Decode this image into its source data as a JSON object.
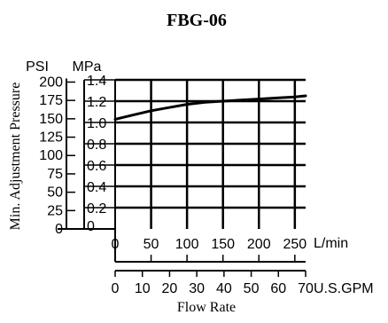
{
  "chart_data": {
    "type": "line",
    "title": "FBG-06",
    "ylabel": "Min. Adjustment Pressure",
    "xlabel": "Flow Rate",
    "y_axes": [
      {
        "unit": "PSI",
        "ticks": [
          "0",
          "25",
          "50",
          "75",
          "100",
          "125",
          "150",
          "175",
          "200"
        ],
        "range": [
          0,
          203
        ]
      },
      {
        "unit": "MPa",
        "ticks": [
          "0",
          "0.2",
          "0.4",
          "0.6",
          "0.8",
          "1.0",
          "1.2",
          "1.4"
        ],
        "range": [
          0,
          1.4
        ]
      }
    ],
    "x_axes": [
      {
        "unit": "L/min",
        "ticks": [
          "0",
          "50",
          "100",
          "150",
          "200",
          "250"
        ],
        "range": [
          0,
          265
        ]
      },
      {
        "unit": "U.S.GPM",
        "ticks": [
          "0",
          "10",
          "20",
          "30",
          "40",
          "50",
          "60",
          "70"
        ],
        "range": [
          0,
          70
        ]
      }
    ],
    "grid": true,
    "series": [
      {
        "x_unit": "L/min",
        "y_unit": "MPa",
        "x": [
          0,
          25,
          50,
          75,
          100,
          125,
          150,
          175,
          200,
          225,
          250,
          265
        ],
        "y": [
          1.03,
          1.07,
          1.11,
          1.14,
          1.17,
          1.19,
          1.2,
          1.21,
          1.22,
          1.23,
          1.24,
          1.25
        ]
      }
    ]
  }
}
